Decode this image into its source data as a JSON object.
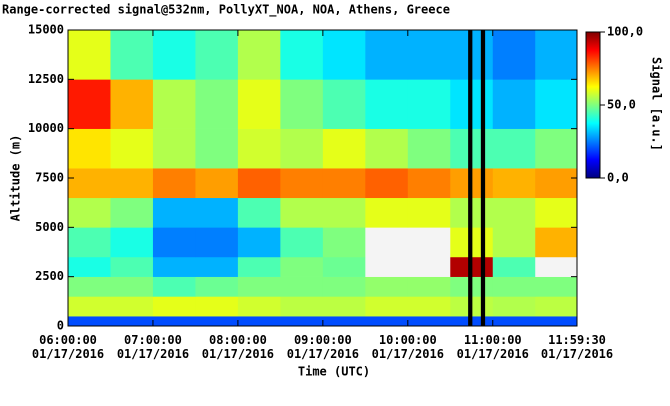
{
  "chart_data": {
    "type": "heatmap",
    "title": "Range-corrected signal@532nm, PollyXT_NOA, NOA, Athens, Greece",
    "x_label": "Time (UTC)",
    "y_label": "Altitude (m)",
    "colorbar_label": "Signal [a.u.]",
    "x_edges": [
      6,
      6.5,
      7,
      7.5,
      8,
      8.5,
      9,
      9.5,
      10,
      10.5,
      11,
      11.5,
      11.991667
    ],
    "y_edges": [
      0,
      500,
      1500,
      2500,
      3500,
      5000,
      6500,
      8000,
      10000,
      12500,
      15000
    ],
    "z": [
      [
        20,
        20,
        20,
        20,
        20,
        20,
        20,
        20,
        20,
        20,
        20,
        20
      ],
      [
        58,
        58,
        60,
        60,
        58,
        56,
        56,
        58,
        58,
        56,
        55,
        56
      ],
      [
        50,
        50,
        45,
        48,
        50,
        50,
        50,
        52,
        52,
        50,
        50,
        50
      ],
      [
        40,
        45,
        30,
        30,
        45,
        50,
        48,
        110,
        110,
        95,
        45,
        110
      ],
      [
        45,
        40,
        25,
        25,
        30,
        45,
        50,
        110,
        110,
        60,
        55,
        70
      ],
      [
        55,
        50,
        30,
        30,
        45,
        55,
        55,
        60,
        60,
        55,
        55,
        60
      ],
      [
        70,
        70,
        75,
        72,
        78,
        75,
        75,
        78,
        75,
        72,
        70,
        72
      ],
      [
        65,
        60,
        55,
        50,
        58,
        55,
        60,
        55,
        50,
        45,
        45,
        50
      ],
      [
        85,
        70,
        55,
        50,
        60,
        50,
        45,
        40,
        40,
        35,
        30,
        35
      ],
      [
        60,
        45,
        40,
        45,
        55,
        40,
        35,
        30,
        30,
        30,
        25,
        30
      ]
    ],
    "gaps": [
      {
        "start": 10.71,
        "end": 10.76
      },
      {
        "start": 10.86,
        "end": 10.91
      }
    ],
    "gap_color": "#000000",
    "colormap": [
      "#00007f",
      "#0000ff",
      "#007fff",
      "#00ffff",
      "#7fff7f",
      "#ffff00",
      "#ff7f00",
      "#ff0000",
      "#7f0000"
    ],
    "over_color": "#f4f4f4",
    "clim": [
      0,
      100
    ],
    "cticks": [
      {
        "value": 0,
        "label": "0,0"
      },
      {
        "value": 50,
        "label": "50,0"
      },
      {
        "value": 100,
        "label": "100,0"
      }
    ],
    "xlim": [
      6,
      11.991667
    ],
    "xticks": [
      {
        "value": 6,
        "label": "06:00:00 01/17/2016"
      },
      {
        "value": 7,
        "label": "07:00:00 01/17/2016"
      },
      {
        "value": 8,
        "label": "08:00:00 01/17/2016"
      },
      {
        "value": 9,
        "label": "09:00:00 01/17/2016"
      },
      {
        "value": 10,
        "label": "10:00:00 01/17/2016"
      },
      {
        "value": 11,
        "label": "11:00:00 01/17/2016"
      },
      {
        "value": 11.991667,
        "label": "11:59:30 01/17/2016"
      }
    ],
    "ylim": [
      0,
      15000
    ],
    "yticks": [
      0,
      2500,
      5000,
      7500,
      10000,
      12500,
      15000
    ]
  }
}
